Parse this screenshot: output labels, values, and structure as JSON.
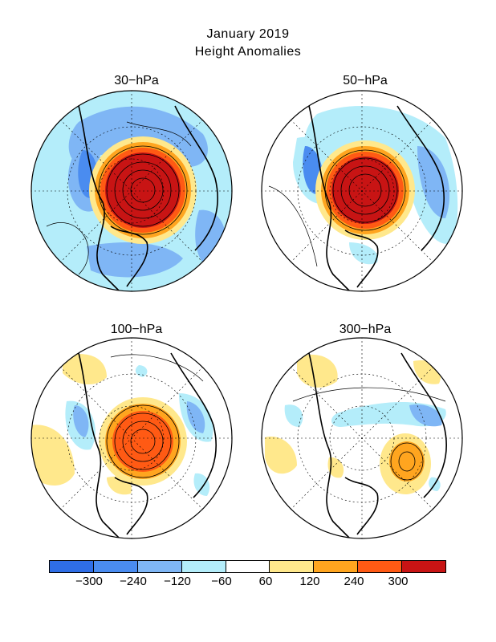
{
  "title": {
    "line1": "January 2019",
    "line2": "Height Anomalies"
  },
  "panels": [
    {
      "label": "30-hPa",
      "anomaly_max": 300
    },
    {
      "label": "50-hPa",
      "anomaly_max": 300
    },
    {
      "label": "100-hPa",
      "anomaly_max": 240
    },
    {
      "label": "300-hPa",
      "anomaly_max": 120
    }
  ],
  "colorbar": {
    "colors": [
      "#2f6ee6",
      "#4a8cf0",
      "#7fb6f5",
      "#b4edfa",
      "#ffffff",
      "#ffe88c",
      "#ffa51f",
      "#ff5a14",
      "#c81414"
    ],
    "ticks": [
      "-300",
      "-240",
      "-120",
      "-60",
      "60",
      "120",
      "240",
      "300"
    ]
  },
  "colors": {
    "land_outline": "#000000",
    "contour": "#000000",
    "graticule": "#000000"
  }
}
